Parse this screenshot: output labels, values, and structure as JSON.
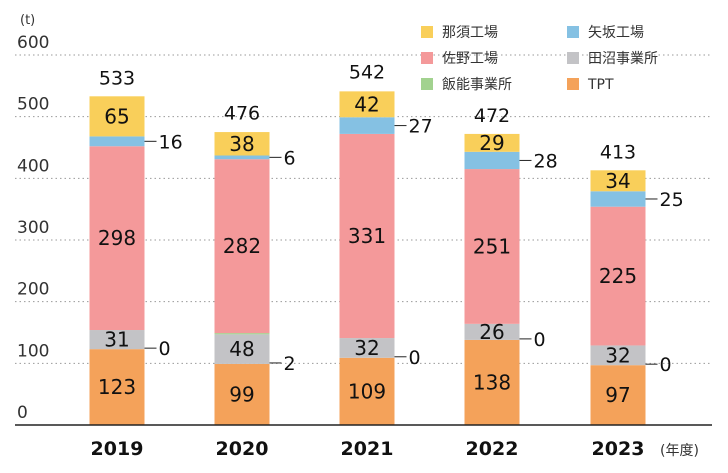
{
  "chart_data": {
    "type": "bar",
    "stacked": true,
    "unit_label": "(t)",
    "x_suffix": "(年度)",
    "categories": [
      "2019",
      "2020",
      "2021",
      "2022",
      "2023"
    ],
    "ylim": [
      0,
      600
    ],
    "yticks": [
      0,
      100,
      200,
      300,
      400,
      500,
      600
    ],
    "grid": true,
    "legend_position": "top-right",
    "stack_order": [
      "TPT",
      "田沼事業所",
      "飯能事業所",
      "佐野工場",
      "矢坂工場",
      "那須工場"
    ],
    "series": [
      {
        "name": "那須工場",
        "color": "#F9CF5A",
        "values": [
          65,
          38,
          42,
          29,
          34
        ]
      },
      {
        "name": "矢坂工場",
        "color": "#85C1E3",
        "values": [
          16,
          6,
          27,
          28,
          25
        ]
      },
      {
        "name": "佐野工場",
        "color": "#F4999A",
        "values": [
          298,
          282,
          331,
          251,
          225
        ]
      },
      {
        "name": "田沼事業所",
        "color": "#C3C3C6",
        "values": [
          31,
          48,
          32,
          26,
          32
        ]
      },
      {
        "name": "飯能事業所",
        "color": "#A2D28F",
        "values": [
          0,
          2,
          0,
          0,
          0
        ]
      },
      {
        "name": "TPT",
        "color": "#F4A25A",
        "values": [
          123,
          99,
          109,
          138,
          97
        ]
      }
    ],
    "totals": [
      533,
      476,
      542,
      472,
      413
    ],
    "legend_order": [
      "那須工場",
      "矢坂工場",
      "佐野工場",
      "田沼事業所",
      "飯能事業所",
      "TPT"
    ]
  }
}
